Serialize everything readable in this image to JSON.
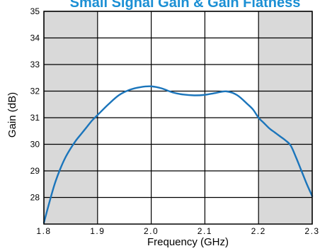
{
  "chart_data": {
    "type": "line",
    "title": "Small Signal Gain & Gain Flatness",
    "xlabel": "Frequency (GHz)",
    "ylabel": "Gain (dB)",
    "xlim": [
      1.8,
      2.3
    ],
    "ylim": [
      27,
      35
    ],
    "xticks": [
      1.8,
      1.9,
      2.0,
      2.1,
      2.2,
      2.3
    ],
    "xtick_labels": [
      "1.8",
      "1.9",
      "2.0",
      "2.1",
      "2.2",
      "2.3"
    ],
    "yticks": [
      28,
      29,
      30,
      31,
      32,
      33,
      34,
      35
    ],
    "ytick_labels": [
      "28",
      "29",
      "30",
      "31",
      "32",
      "33",
      "34",
      "35"
    ],
    "grid": true,
    "shaded_regions": [
      [
        1.8,
        1.9
      ],
      [
        2.2,
        2.3
      ]
    ],
    "series": [
      {
        "x": [
          1.8,
          1.81,
          1.82,
          1.83,
          1.84,
          1.85,
          1.86,
          1.87,
          1.88,
          1.89,
          1.9,
          1.92,
          1.94,
          1.96,
          1.98,
          2.0,
          2.02,
          2.04,
          2.06,
          2.08,
          2.1,
          2.12,
          2.14,
          2.16,
          2.18,
          2.19,
          2.2,
          2.21,
          2.22,
          2.23,
          2.24,
          2.25,
          2.26,
          2.27,
          2.28,
          2.29,
          2.3
        ],
        "y": [
          27.05,
          27.8,
          28.5,
          29.05,
          29.5,
          29.85,
          30.15,
          30.4,
          30.65,
          30.9,
          31.1,
          31.5,
          31.85,
          32.05,
          32.15,
          32.18,
          32.1,
          31.95,
          31.87,
          31.84,
          31.86,
          31.93,
          31.99,
          31.85,
          31.5,
          31.3,
          31.0,
          30.8,
          30.6,
          30.45,
          30.3,
          30.15,
          29.95,
          29.5,
          29.0,
          28.5,
          28.05
        ]
      }
    ],
    "colors": {
      "line": "#1b75bb",
      "title": "#1b8fd4",
      "shade": "#d9d9d9",
      "grid": "#000000"
    }
  }
}
